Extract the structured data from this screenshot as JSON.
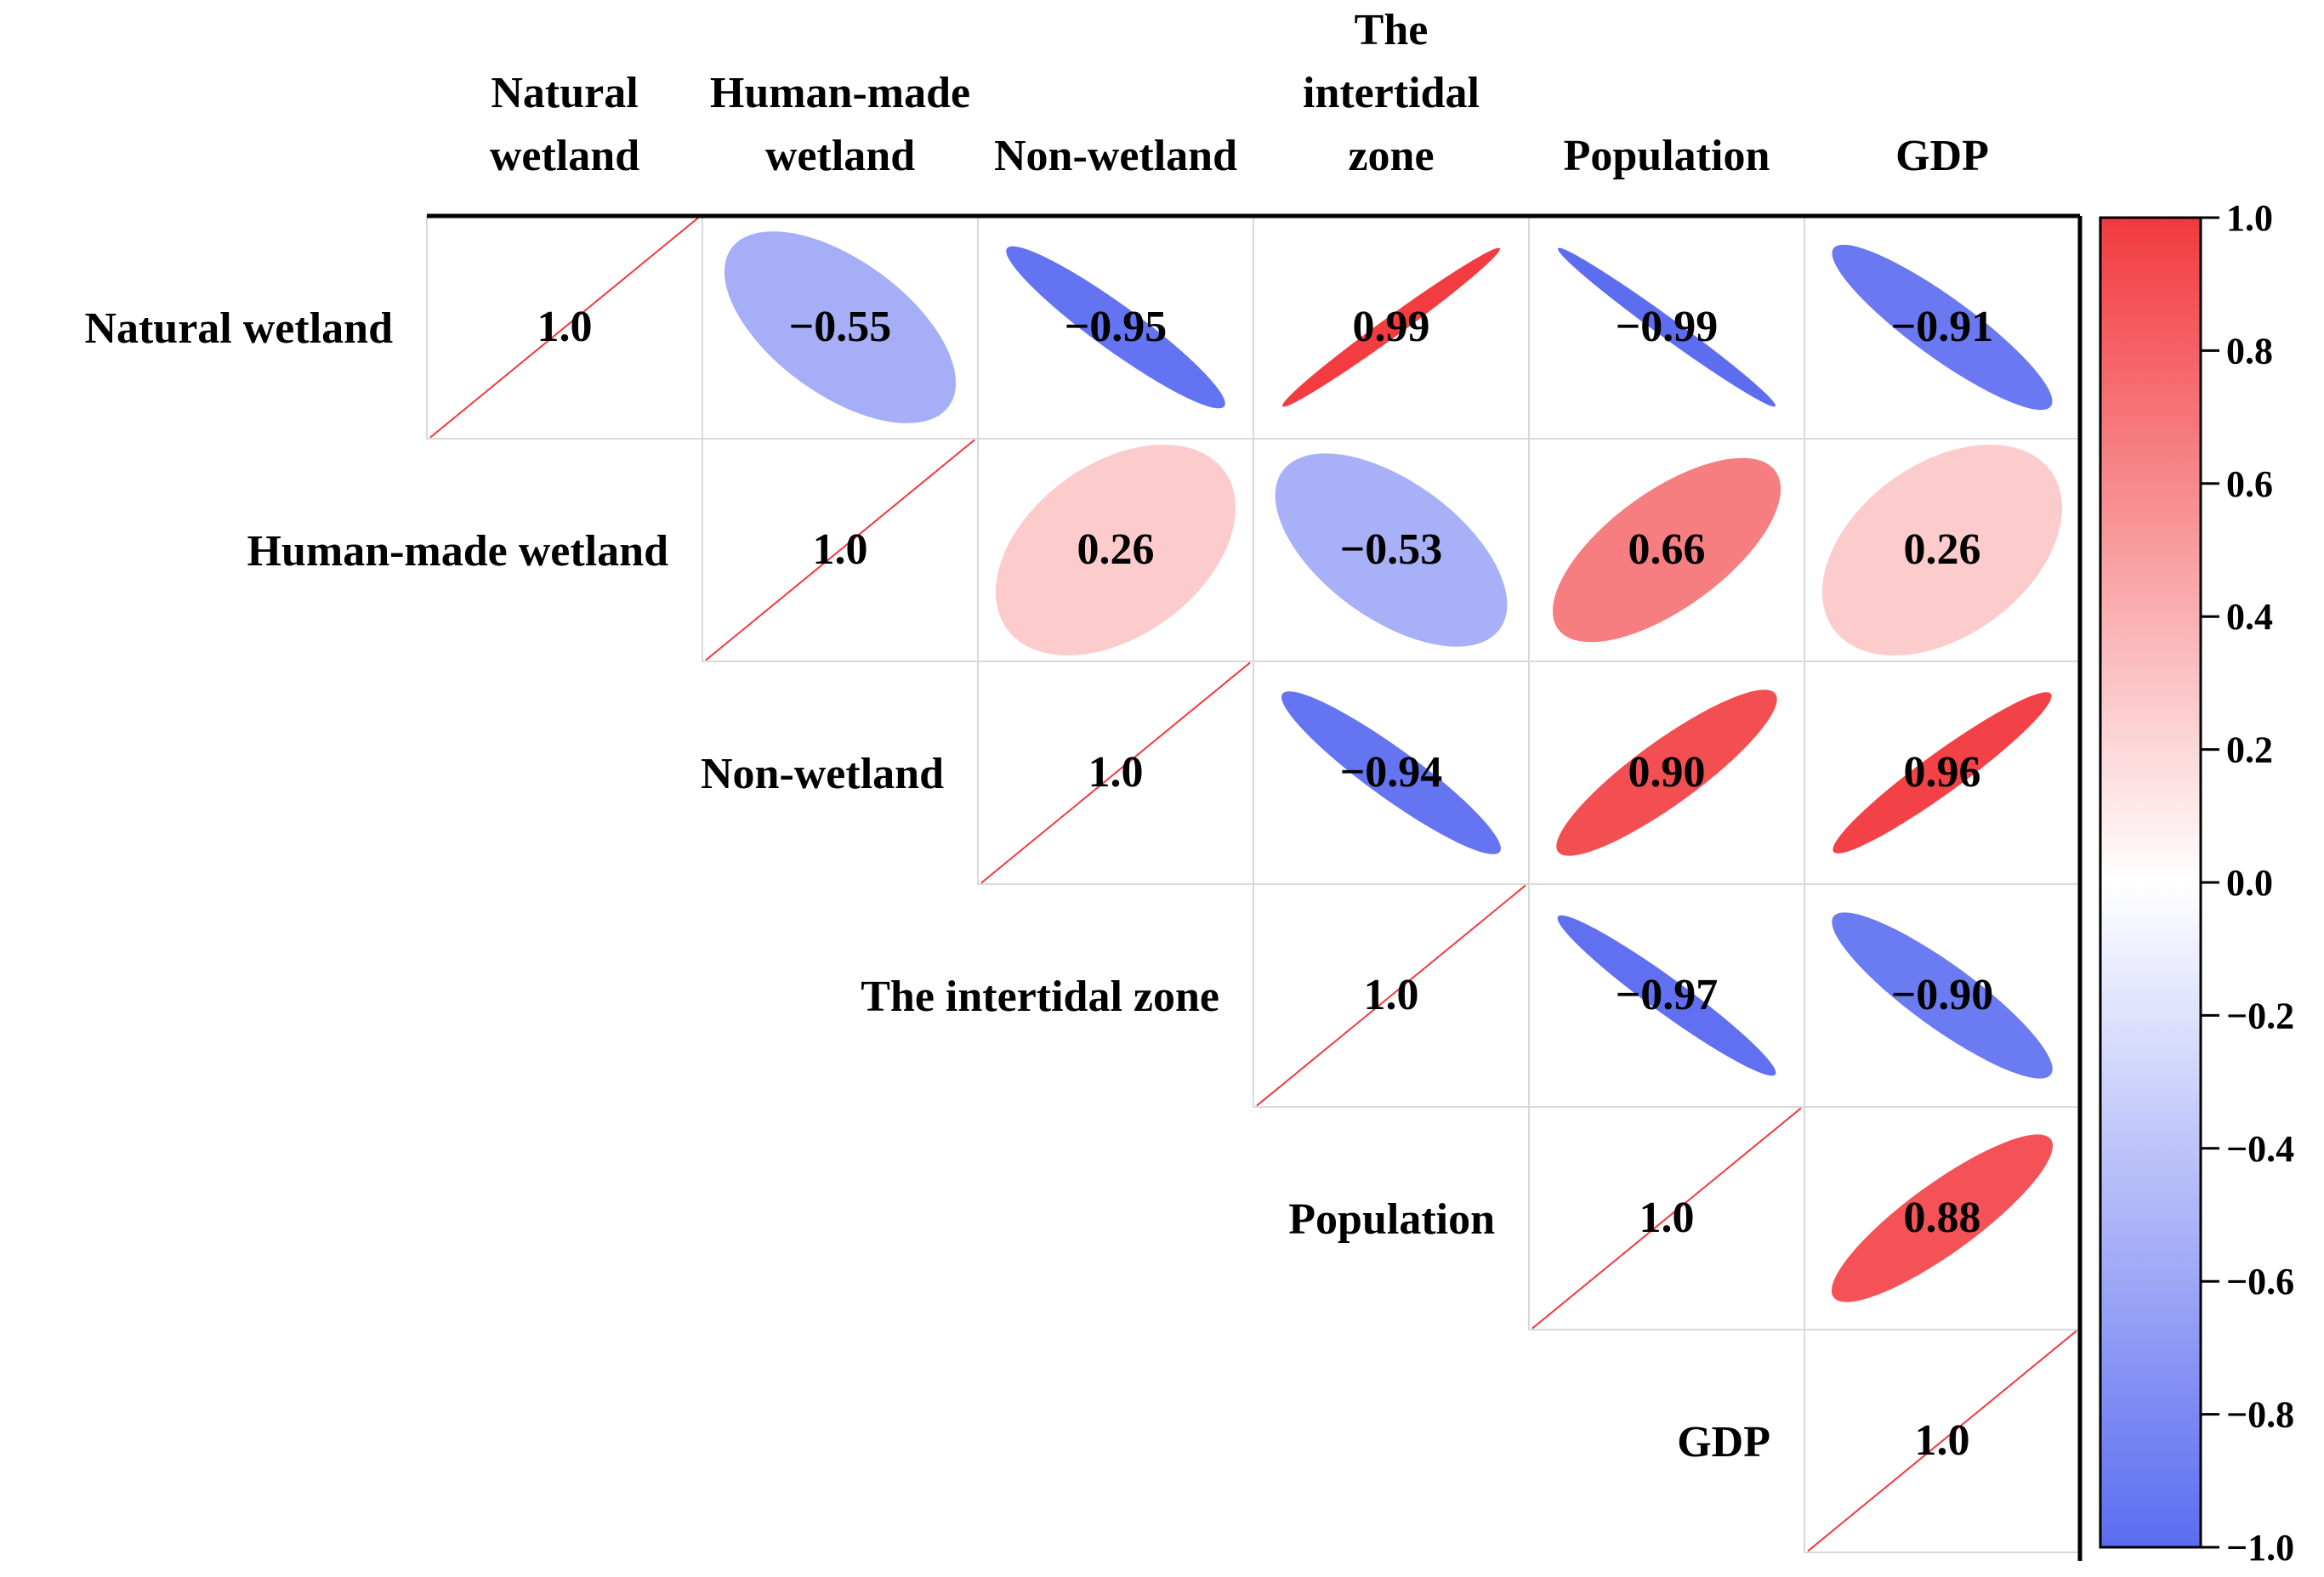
{
  "chart_data": {
    "type": "heatmap",
    "subtype": "upper-triangular correlation matrix (ellipse glyphs)",
    "column_headers": [
      [
        "Natural",
        "wetland"
      ],
      [
        "Human-made",
        "wetland"
      ],
      [
        "Non-wetland"
      ],
      [
        "The",
        "intertidal",
        "zone"
      ],
      [
        "Population"
      ],
      [
        "GDP"
      ]
    ],
    "row_labels": [
      "Natural wetland",
      "Human-made wetland",
      "Non-wetland",
      "The intertidal zone",
      "Population",
      "GDP"
    ],
    "value_labels": [
      [
        "1.0",
        "−0.55",
        "−0.95",
        "0.99",
        "−0.99",
        "−0.91"
      ],
      [
        null,
        "1.0",
        "0.26",
        "−0.53",
        "0.66",
        "0.26"
      ],
      [
        null,
        null,
        "1.0",
        "−0.94",
        "0.90",
        "0.96"
      ],
      [
        null,
        null,
        null,
        "1.0",
        "−0.97",
        "−0.90"
      ],
      [
        null,
        null,
        null,
        null,
        "1.0",
        "0.88"
      ],
      [
        null,
        null,
        null,
        null,
        null,
        "1.0"
      ]
    ],
    "matrix": [
      [
        1.0,
        -0.55,
        -0.95,
        0.99,
        -0.99,
        -0.91
      ],
      [
        null,
        1.0,
        0.26,
        -0.53,
        0.66,
        0.26
      ],
      [
        null,
        null,
        1.0,
        -0.94,
        0.9,
        0.96
      ],
      [
        null,
        null,
        null,
        1.0,
        -0.97,
        -0.9
      ],
      [
        null,
        null,
        null,
        null,
        1.0,
        0.88
      ],
      [
        null,
        null,
        null,
        null,
        null,
        1.0
      ]
    ],
    "colorbar": {
      "range": [
        -1.0,
        1.0
      ],
      "ticks": [
        "1.0",
        "0.8",
        "0.6",
        "0.4",
        "0.2",
        "0.0",
        "−0.2",
        "−0.4",
        "−0.6",
        "−0.8",
        "−1.0"
      ],
      "tick_values": [
        1.0,
        0.8,
        0.6,
        0.4,
        0.2,
        0.0,
        -0.2,
        -0.4,
        -0.6,
        -0.8,
        -1.0
      ],
      "colors": {
        "negative": "#5b6cf0",
        "zero": "#ffffff",
        "positive": "#f23a3f"
      }
    },
    "diagonal_line_color": "#f23a3f",
    "grid_color": "#d9d9d9"
  }
}
